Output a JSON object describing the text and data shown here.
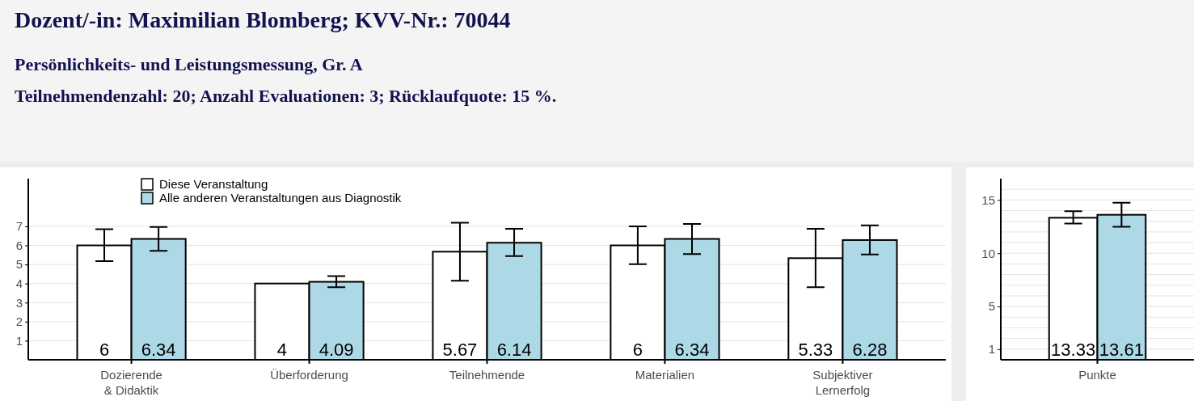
{
  "chart_data": [
    {
      "type": "bar",
      "title": "Dozent/-in: Maximilian Blomberg; KVV-Nr.: 70044",
      "subtitle": "Persönlichkeits- und Leistungsmessung, Gr. A\nTeilnehmendenzahl: 20; Anzahl Evaluationen: 3; Rücklaufquote: 15 %.",
      "categories": [
        "Dozierende\n& Didaktik",
        "Überforderung",
        "Teilnehmende",
        "Materialien",
        "Subjektiver\nLernerfolg"
      ],
      "series": [
        {
          "name": "Diese Veranstaltung",
          "color": "#ffffff",
          "values": [
            6,
            4,
            5.67,
            6,
            5.33
          ],
          "errors": [
            [
              5.17,
              6.85
            ],
            null,
            [
              4.15,
              7.19
            ],
            [
              5.01,
              7.0
            ],
            [
              3.81,
              6.87
            ]
          ]
        },
        {
          "name": "Alle anderen Veranstaltungen aus Diagnostik",
          "color": "#add8e6",
          "values": [
            6.34,
            4.09,
            6.14,
            6.34,
            6.28
          ],
          "errors": [
            [
              5.72,
              6.97
            ],
            [
              3.81,
              4.39
            ],
            [
              5.44,
              6.87
            ],
            [
              5.55,
              7.13
            ],
            [
              5.52,
              7.05
            ]
          ]
        }
      ],
      "ylim": [
        0,
        9.5
      ],
      "yticks": [
        1,
        2,
        3,
        4,
        5,
        6,
        7
      ],
      "grid": "y",
      "legend": "top left",
      "data_labels": true
    },
    {
      "type": "bar",
      "categories": [
        "Punkte"
      ],
      "series": [
        {
          "color": "#ffffff",
          "values": [
            13.33
          ],
          "errors": [
            [
              12.78,
              13.95
            ]
          ]
        },
        {
          "color": "#add8e6",
          "values": [
            13.61
          ],
          "errors": [
            [
              12.48,
              14.75
            ]
          ]
        }
      ],
      "ylim": [
        0,
        17
      ],
      "yticks": [
        1,
        {
          "value": 2,
          "label": null
        },
        {
          "value": 3,
          "label": null
        },
        {
          "value": 4,
          "label": null
        },
        5,
        {
          "value": 6,
          "label": null
        },
        {
          "value": 7,
          "label": null
        },
        {
          "value": 8,
          "label": null
        },
        {
          "value": 9,
          "label": null
        },
        10,
        {
          "value": 11,
          "label": null
        },
        {
          "value": 12,
          "label": null
        },
        {
          "value": 13,
          "label": null
        },
        {
          "value": 14,
          "label": null
        },
        15,
        {
          "value": 16,
          "label": null
        }
      ],
      "grid": "y",
      "data_labels": true
    }
  ]
}
